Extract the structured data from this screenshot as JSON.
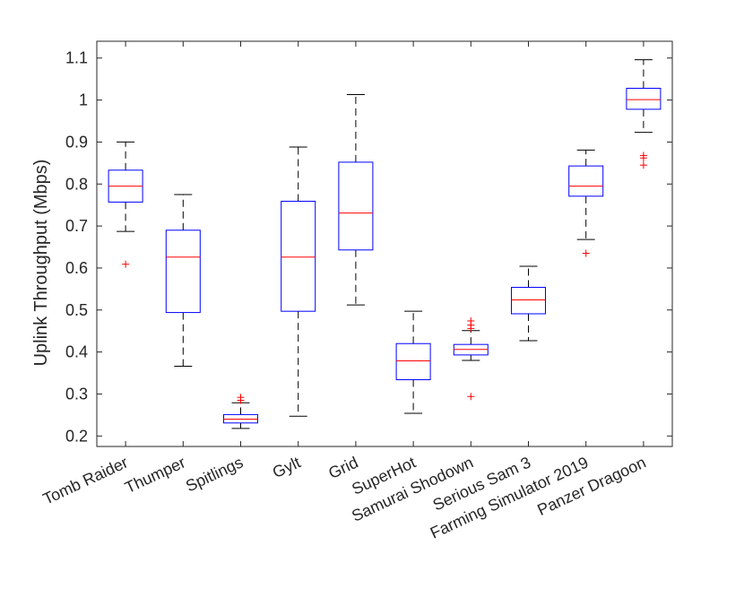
{
  "chart_data": {
    "type": "box",
    "title": "",
    "xlabel": "",
    "ylabel": "Uplink Throughput (Mbps)",
    "ylim": [
      0.175,
      1.14
    ],
    "yticks": [
      0.2,
      0.3,
      0.4,
      0.5,
      0.6,
      0.7,
      0.8,
      0.9,
      1,
      1.1
    ],
    "ytick_labels": [
      "0.2",
      "0.3",
      "0.4",
      "0.5",
      "0.6",
      "0.7",
      "0.8",
      "0.9",
      "1",
      "1.1"
    ],
    "grid": false,
    "colors": {
      "box": "#0000ff",
      "median": "#ff0000",
      "whisker": "#000000",
      "outlier": "#ff0000",
      "axis": "#262626"
    },
    "categories": [
      "Tomb Raider",
      "Thumper",
      "Spitlings",
      "Gylt",
      "Grid",
      "SuperHot",
      "Samurai Shodown",
      "Serious Sam 3",
      "Farming Simulator 2019",
      "Panzer Dragoon"
    ],
    "boxes": [
      {
        "name": "Tomb Raider",
        "whisker_low": 0.687,
        "q1": 0.757,
        "median": 0.795,
        "q3": 0.833,
        "whisker_high": 0.9,
        "outliers": [
          0.609
        ]
      },
      {
        "name": "Thumper",
        "whisker_low": 0.366,
        "q1": 0.494,
        "median": 0.626,
        "q3": 0.69,
        "whisker_high": 0.775,
        "outliers": []
      },
      {
        "name": "Spitlings",
        "whisker_low": 0.218,
        "q1": 0.231,
        "median": 0.24,
        "q3": 0.251,
        "whisker_high": 0.279,
        "outliers": [
          0.285,
          0.292
        ]
      },
      {
        "name": "Gylt",
        "whisker_low": 0.247,
        "q1": 0.497,
        "median": 0.626,
        "q3": 0.759,
        "whisker_high": 0.888,
        "outliers": []
      },
      {
        "name": "Grid",
        "whisker_low": 0.512,
        "q1": 0.643,
        "median": 0.731,
        "q3": 0.852,
        "whisker_high": 1.013,
        "outliers": []
      },
      {
        "name": "SuperHot",
        "whisker_low": 0.254,
        "q1": 0.334,
        "median": 0.379,
        "q3": 0.42,
        "whisker_high": 0.497,
        "outliers": []
      },
      {
        "name": "Samurai Shodown",
        "whisker_low": 0.38,
        "q1": 0.393,
        "median": 0.406,
        "q3": 0.418,
        "whisker_high": 0.451,
        "outliers": [
          0.294,
          0.456,
          0.464,
          0.474
        ]
      },
      {
        "name": "Serious Sam 3",
        "whisker_low": 0.427,
        "q1": 0.491,
        "median": 0.524,
        "q3": 0.554,
        "whisker_high": 0.604,
        "outliers": []
      },
      {
        "name": "Farming Simulator 2019",
        "whisker_low": 0.668,
        "q1": 0.771,
        "median": 0.795,
        "q3": 0.843,
        "whisker_high": 0.881,
        "outliers": [
          0.635
        ]
      },
      {
        "name": "Panzer Dragoon",
        "whisker_low": 0.923,
        "q1": 0.978,
        "median": 1.001,
        "q3": 1.028,
        "whisker_high": 1.096,
        "outliers": [
          0.845,
          0.862,
          0.868
        ]
      }
    ]
  }
}
